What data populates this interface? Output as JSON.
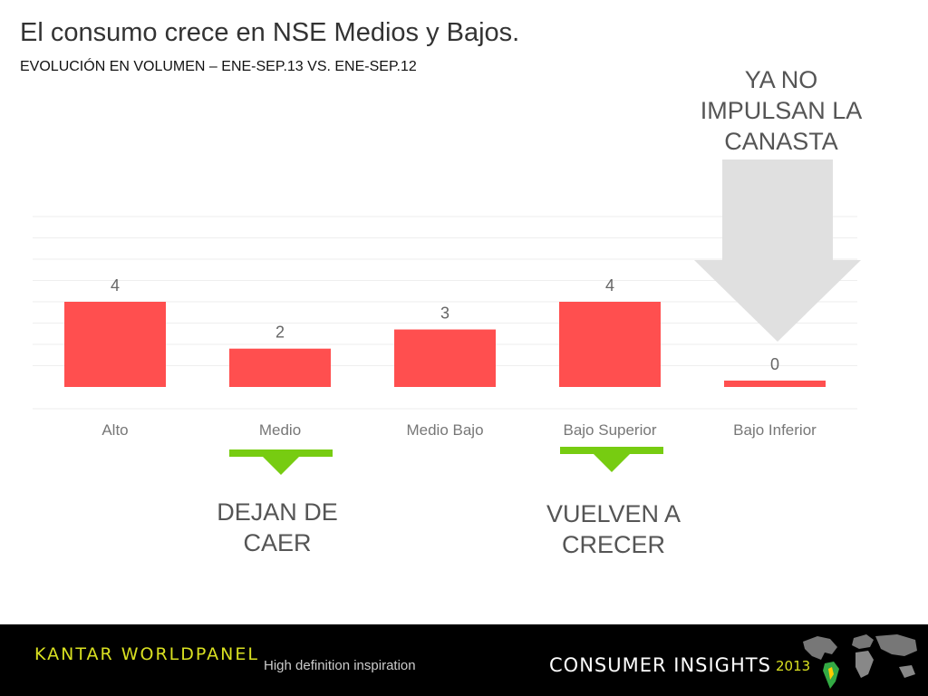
{
  "title": "El consumo crece en NSE Medios y Bajos.",
  "subtitle": "EVOLUCIÓN EN VOLUMEN – ENE-SEP.13  VS. ENE-SEP.12",
  "colors": {
    "bar": "#ff4f4f",
    "gridline": "#eeeeee",
    "value_label": "#666666",
    "category_label": "#777777",
    "callout_text": "#555555",
    "arrow": "#e0e0e0",
    "marker": "#77cc11"
  },
  "chart_data": {
    "type": "bar",
    "categories": [
      "Alto",
      "Medio",
      "Medio Bajo",
      "Bajo Superior",
      "Bajo Inferior"
    ],
    "values": [
      4.0,
      1.8,
      2.7,
      4.0,
      0.3
    ],
    "data_labels": [
      "4",
      "2",
      "3",
      "4",
      "0"
    ],
    "ylim": [
      0,
      8
    ],
    "grid": true,
    "legend": "none"
  },
  "callouts": {
    "top": "YA NO IMPULSAN LA CANASTA",
    "left": "DEJAN DE CAER",
    "right": "VUELVEN A CRECER"
  },
  "footer": {
    "brand": "KANTAR WORLDPANEL",
    "tagline": "High definition inspiration",
    "product": "CONSUMER INSIGHTS",
    "year": "2013"
  },
  "icons": {
    "arrow": "down-arrow-icon",
    "marker": "down-triangle-icon",
    "map": "world-map-icon"
  }
}
